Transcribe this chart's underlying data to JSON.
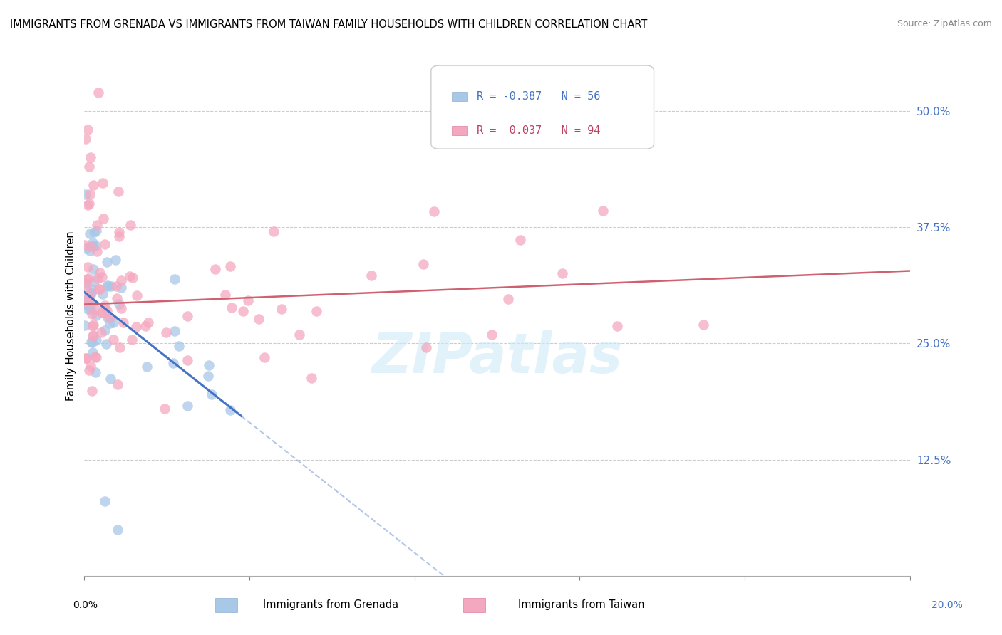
{
  "title": "IMMIGRANTS FROM GRENADA VS IMMIGRANTS FROM TAIWAN FAMILY HOUSEHOLDS WITH CHILDREN CORRELATION CHART",
  "source": "Source: ZipAtlas.com",
  "ylabel": "Family Households with Children",
  "ytick_labels": [
    "50.0%",
    "37.5%",
    "25.0%",
    "12.5%"
  ],
  "ytick_values": [
    0.5,
    0.375,
    0.25,
    0.125
  ],
  "xlim": [
    0.0,
    0.2
  ],
  "ylim": [
    0.0,
    0.56
  ],
  "grenada_color": "#a8c8e8",
  "taiwan_color": "#f4a8c0",
  "grenada_R": -0.387,
  "grenada_N": 56,
  "taiwan_R": 0.037,
  "taiwan_N": 94,
  "grenada_line_color": "#4472c4",
  "taiwan_line_color": "#d06070",
  "grenada_line_start": 0.0,
  "grenada_line_end": 0.038,
  "grenada_line_y0": 0.305,
  "grenada_line_slope": -3.5,
  "taiwan_line_y0": 0.292,
  "taiwan_line_slope": 0.18,
  "legend_label_grenada": "Immigrants from Grenada",
  "legend_label_taiwan": "Immigrants from Taiwan",
  "watermark": "ZIPatlas"
}
